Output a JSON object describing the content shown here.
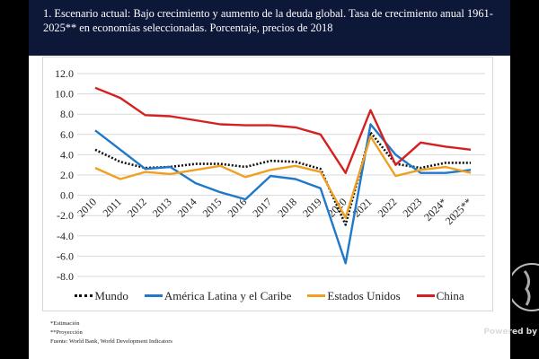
{
  "header": {
    "title": "1. Escenario actual:  Bajo crecimiento y aumento de la deuda global. Tasa de crecimiento anual 1961-2025** en economías seleccionadas. Porcentaje, precios de 2018"
  },
  "notes": [
    "*Estimación",
    "**Proyección",
    "Fuente: World Bank, World Development Indicators"
  ],
  "watermark": {
    "text": "Powered by"
  },
  "chart_data": {
    "type": "line",
    "title": "",
    "xlabel": "",
    "ylabel": "",
    "categories": [
      "2010",
      "2011",
      "2012",
      "2013",
      "2014",
      "2015",
      "2016",
      "2017",
      "2018",
      "2019",
      "2020",
      "2021",
      "2022",
      "2023",
      "2024*",
      "2025**"
    ],
    "ylim": [
      -8,
      12
    ],
    "yticks": [
      "12.0",
      "10.0",
      "8.0",
      "6.0",
      "4.0",
      "2.0",
      "0.0",
      "-2.0",
      "-4.0",
      "-6.0",
      "-8.0"
    ],
    "grid": true,
    "legend": "bottom",
    "series": [
      {
        "name": "Mundo",
        "color": "#111111",
        "style": "dotted",
        "values": [
          4.5,
          3.3,
          2.7,
          2.8,
          3.1,
          3.1,
          2.8,
          3.4,
          3.3,
          2.6,
          -2.9,
          6.2,
          3.1,
          2.7,
          3.2,
          3.2
        ]
      },
      {
        "name": "América Latina y el Caribe",
        "color": "#1f78c8",
        "style": "solid",
        "values": [
          6.4,
          4.5,
          2.6,
          2.8,
          1.2,
          0.3,
          -0.4,
          1.9,
          1.6,
          0.7,
          -6.7,
          7.0,
          4.0,
          2.2,
          2.2,
          2.5
        ]
      },
      {
        "name": "Estados Unidos",
        "color": "#f0a020",
        "style": "solid",
        "values": [
          2.7,
          1.6,
          2.3,
          2.1,
          2.5,
          2.9,
          1.8,
          2.5,
          2.9,
          2.3,
          -2.2,
          5.8,
          1.9,
          2.5,
          2.8,
          2.2
        ]
      },
      {
        "name": "China",
        "color": "#d42020",
        "style": "solid",
        "values": [
          10.6,
          9.6,
          7.9,
          7.8,
          7.4,
          7.0,
          6.9,
          6.9,
          6.7,
          6.0,
          2.2,
          8.4,
          3.0,
          5.2,
          4.8,
          4.5
        ]
      }
    ]
  }
}
